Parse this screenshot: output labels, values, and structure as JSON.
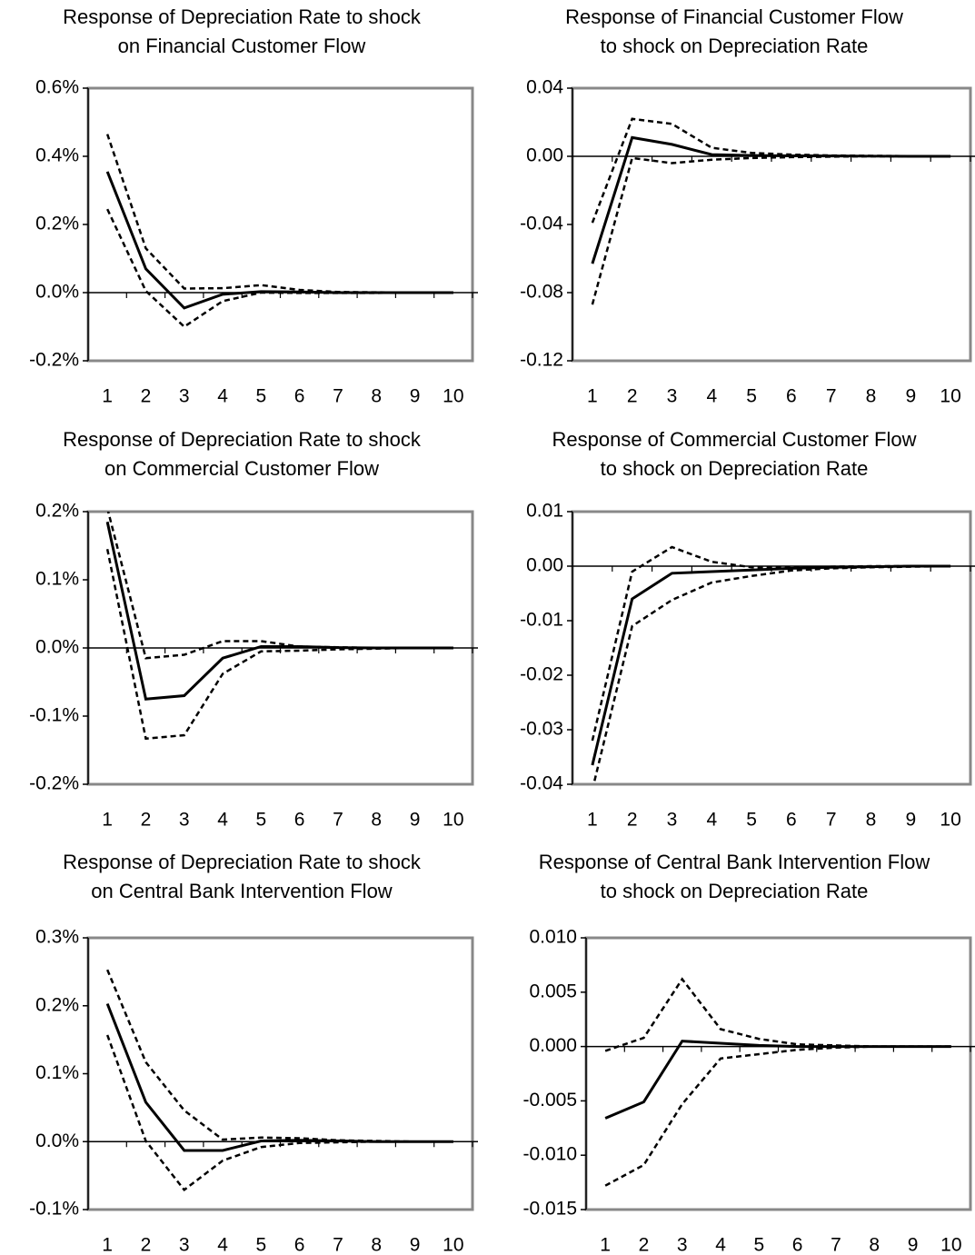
{
  "chart_data": [
    {
      "type": "line",
      "title": [
        "Response of Depreciation Rate to shock",
        "on Financial Customer Flow"
      ],
      "categories": [
        "1",
        "2",
        "3",
        "4",
        "5",
        "6",
        "7",
        "8",
        "9",
        "10"
      ],
      "series": [
        {
          "color": "#000000",
          "dashed": false,
          "values": [
            0.355,
            0.07,
            -0.045,
            -0.005,
            0.003,
            0.002,
            0,
            0,
            0,
            0
          ]
        },
        {
          "color": "#000000",
          "dashed": true,
          "values": [
            0.465,
            0.13,
            0.012,
            0.013,
            0.022,
            0.008,
            0.002,
            0.001,
            0,
            0
          ]
        },
        {
          "color": "#000000",
          "dashed": true,
          "values": [
            0.245,
            0.005,
            -0.1,
            -0.025,
            0.0,
            -0.001,
            -0.001,
            -0.001,
            0,
            0
          ]
        }
      ],
      "ylim": [
        -0.2,
        0.6
      ],
      "yticks": [
        {
          "value": -0.2,
          "label": "-0.2%"
        },
        {
          "value": 0,
          "label": "0.0%"
        },
        {
          "value": 0.2,
          "label": "0.2%"
        },
        {
          "value": 0.4,
          "label": "0.4%"
        },
        {
          "value": 0.6,
          "label": "0.6%"
        }
      ]
    },
    {
      "type": "line",
      "title": [
        "Response of Financial Customer Flow",
        "to shock on Depreciation Rate"
      ],
      "categories": [
        "1",
        "2",
        "3",
        "4",
        "5",
        "6",
        "7",
        "8",
        "9",
        "10"
      ],
      "series": [
        {
          "color": "#000000",
          "dashed": false,
          "values": [
            -0.063,
            0.011,
            0.007,
            0.001,
            0.0005,
            0.0003,
            0.0002,
            0.0001,
            0,
            0
          ]
        },
        {
          "color": "#000000",
          "dashed": true,
          "values": [
            -0.039,
            0.022,
            0.019,
            0.005,
            0.002,
            0.001,
            0.0005,
            0.0003,
            0.0001,
            0
          ]
        },
        {
          "color": "#000000",
          "dashed": true,
          "values": [
            -0.087,
            -0.001,
            -0.004,
            -0.002,
            -0.001,
            -0.0005,
            -0.0002,
            0,
            0,
            0
          ]
        }
      ],
      "ylim": [
        -0.12,
        0.04
      ],
      "yticks": [
        -0.12,
        -0.08,
        -0.04,
        {
          "value": 0,
          "label": "0.00"
        },
        0.04
      ]
    },
    {
      "type": "line",
      "title": [
        "Response of Depreciation Rate to shock",
        "on Commercial Customer Flow"
      ],
      "categories": [
        "1",
        "2",
        "3",
        "4",
        "5",
        "6",
        "7",
        "8",
        "9",
        "10"
      ],
      "series": [
        {
          "color": "#000000",
          "dashed": false,
          "values": [
            0.185,
            -0.075,
            -0.07,
            -0.015,
            0.002,
            0.002,
            0.0005,
            0,
            0,
            0
          ]
        },
        {
          "color": "#000000",
          "dashed": true,
          "values": [
            0.205,
            -0.015,
            -0.01,
            0.01,
            0.01,
            0.002,
            0.001,
            0,
            0,
            0
          ]
        },
        {
          "color": "#000000",
          "dashed": true,
          "values": [
            0.145,
            -0.133,
            -0.128,
            -0.038,
            -0.005,
            -0.004,
            -0.002,
            -0.001,
            0,
            0
          ]
        }
      ],
      "ylim": [
        -0.2,
        0.2
      ],
      "yticks": [
        {
          "value": -0.2,
          "label": "-0.2%"
        },
        {
          "value": -0.1,
          "label": "-0.1%"
        },
        {
          "value": 0,
          "label": "0.0%"
        },
        {
          "value": 0.1,
          "label": "0.1%"
        },
        {
          "value": 0.2,
          "label": "0.2%"
        }
      ]
    },
    {
      "type": "line",
      "title": [
        "Response of Commercial Customer Flow",
        "to shock on Depreciation Rate"
      ],
      "categories": [
        "1",
        "2",
        "3",
        "4",
        "5",
        "6",
        "7",
        "8",
        "9",
        "10"
      ],
      "series": [
        {
          "color": "#000000",
          "dashed": false,
          "values": [
            -0.0365,
            -0.006,
            -0.0013,
            -0.001,
            -0.0007,
            -0.0004,
            -0.0002,
            -0.0001,
            0,
            0
          ]
        },
        {
          "color": "#000000",
          "dashed": true,
          "values": [
            -0.032,
            -0.001,
            0.0035,
            0.0008,
            -0.0002,
            -0.0003,
            -0.0001,
            0,
            0,
            0
          ]
        },
        {
          "color": "#000000",
          "dashed": true,
          "values": [
            -0.041,
            -0.011,
            -0.0062,
            -0.003,
            -0.0018,
            -0.0008,
            -0.0004,
            -0.0002,
            -0.0001,
            0
          ]
        }
      ],
      "ylim": [
        -0.04,
        0.01
      ],
      "yticks": [
        -0.04,
        -0.03,
        -0.02,
        -0.01,
        {
          "value": 0,
          "label": "0.00"
        },
        0.01
      ]
    },
    {
      "type": "line",
      "title": [
        "Response of Depreciation Rate to shock",
        "on Central Bank Intervention Flow"
      ],
      "categories": [
        "1",
        "2",
        "3",
        "4",
        "5",
        "6",
        "7",
        "8",
        "9",
        "10"
      ],
      "series": [
        {
          "color": "#000000",
          "dashed": false,
          "values": [
            0.203,
            0.058,
            -0.013,
            -0.013,
            0.001,
            0.002,
            0.001,
            0,
            0,
            0
          ]
        },
        {
          "color": "#000000",
          "dashed": true,
          "values": [
            0.253,
            0.117,
            0.046,
            0.003,
            0.006,
            0.005,
            0.002,
            0.001,
            0,
            0
          ]
        },
        {
          "color": "#000000",
          "dashed": true,
          "values": [
            0.157,
            0.001,
            -0.071,
            -0.028,
            -0.008,
            -0.002,
            -0.001,
            0,
            0,
            0
          ]
        }
      ],
      "ylim": [
        -0.1,
        0.3
      ],
      "yticks": [
        {
          "value": -0.1,
          "label": "-0.1%"
        },
        {
          "value": 0,
          "label": "0.0%"
        },
        {
          "value": 0.1,
          "label": "0.1%"
        },
        {
          "value": 0.2,
          "label": "0.2%"
        },
        {
          "value": 0.3,
          "label": "0.3%"
        }
      ]
    },
    {
      "type": "line",
      "title": [
        "Response of Central Bank Intervention Flow",
        "to shock on Depreciation Rate"
      ],
      "categories": [
        "1",
        "2",
        "3",
        "4",
        "5",
        "6",
        "7",
        "8",
        "9",
        "10"
      ],
      "series": [
        {
          "color": "#000000",
          "dashed": false,
          "values": [
            -0.0066,
            -0.0051,
            0.0005,
            0.0003,
            0.0001,
            0,
            0,
            0,
            0,
            0
          ]
        },
        {
          "color": "#000000",
          "dashed": true,
          "values": [
            -0.0004,
            0.0008,
            0.0062,
            0.0016,
            0.0007,
            0.0002,
            0.0001,
            0,
            0,
            0
          ]
        },
        {
          "color": "#000000",
          "dashed": true,
          "values": [
            -0.0128,
            -0.0109,
            -0.0053,
            -0.0011,
            -0.0007,
            -0.0003,
            -0.0001,
            0,
            0,
            0
          ]
        }
      ],
      "ylim": [
        -0.015,
        0.01
      ],
      "yticks": [
        {
          "value": -0.015,
          "label": "-0.015"
        },
        {
          "value": -0.01,
          "label": "-0.010"
        },
        -0.005,
        {
          "value": 0,
          "label": "0.000"
        },
        0.005,
        {
          "value": 0.01,
          "label": "0.010"
        }
      ]
    }
  ]
}
